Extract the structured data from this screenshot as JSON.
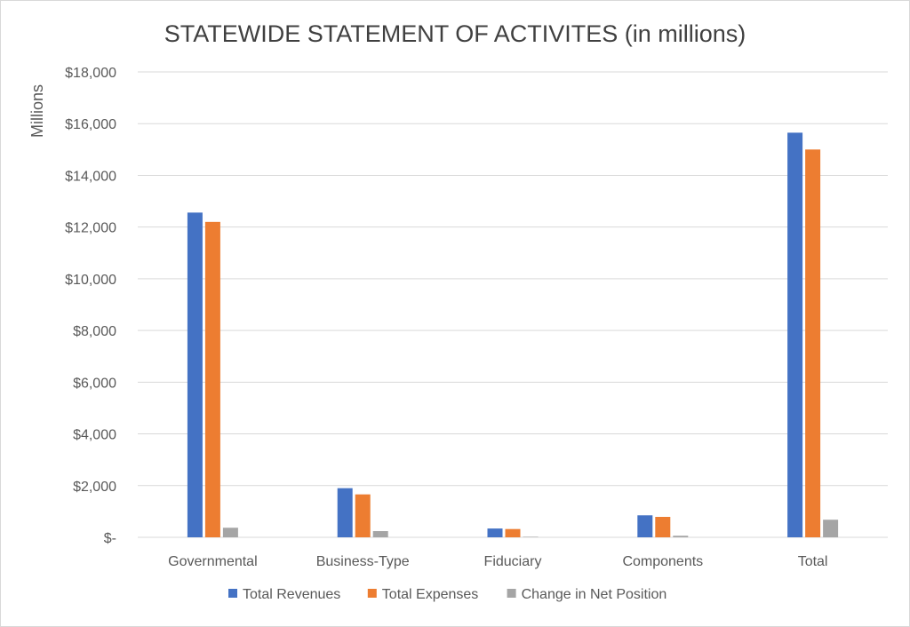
{
  "chart_data": {
    "type": "bar",
    "title": "STATEWIDE STATEMENT OF ACTIVITES (in millions)",
    "xlabel": "",
    "ylabel": "Millions",
    "ylim": [
      0,
      18000
    ],
    "yticks": [
      0,
      2000,
      4000,
      6000,
      8000,
      10000,
      12000,
      14000,
      16000,
      18000
    ],
    "ytick_labels": [
      "$-",
      "$2,000",
      "$4,000",
      "$6,000",
      "$8,000",
      "$10,000",
      "$12,000",
      "$14,000",
      "$16,000",
      "$18,000"
    ],
    "grid": true,
    "legend_position": "bottom",
    "categories": [
      "Governmental",
      "Business-Type",
      "Fiduciary",
      "Components",
      "Total"
    ],
    "series": [
      {
        "name": "Total Revenues",
        "color": "#4472c4",
        "values": [
          12560,
          1900,
          340,
          850,
          15650
        ]
      },
      {
        "name": "Total Expenses",
        "color": "#ed7d31",
        "values": [
          12200,
          1660,
          320,
          790,
          15000
        ]
      },
      {
        "name": "Change in Net Position",
        "color": "#a5a5a5",
        "values": [
          370,
          240,
          20,
          60,
          680
        ]
      }
    ]
  }
}
